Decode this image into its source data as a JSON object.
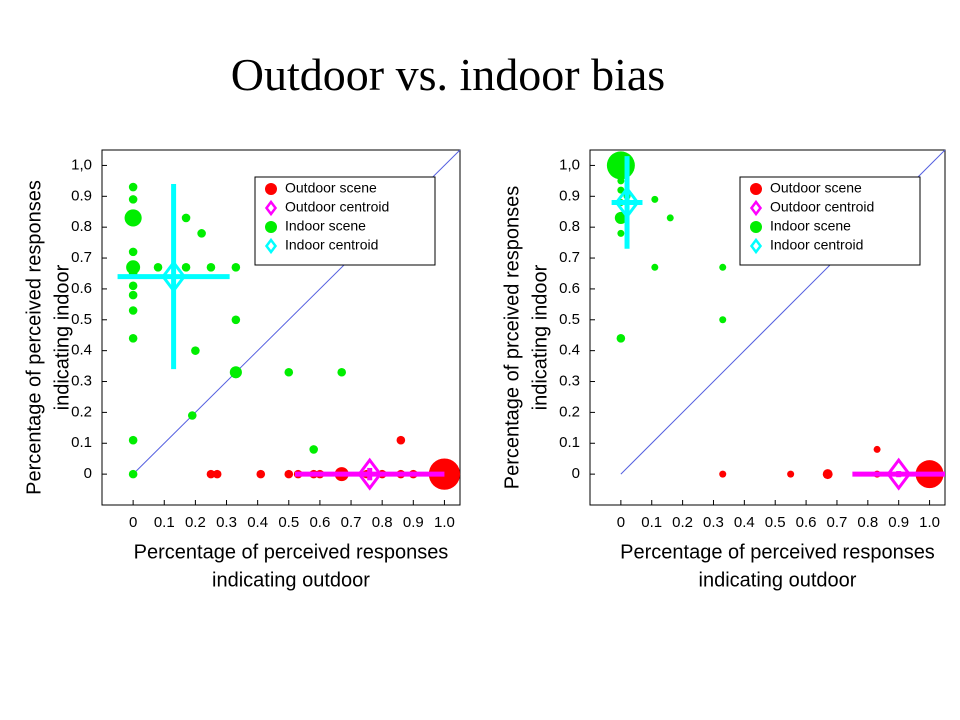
{
  "title": "Outdoor vs. indoor bias",
  "chart_data": [
    {
      "type": "scatter",
      "xlabel": [
        "Percentage of perceived responses",
        "indicating outdoor"
      ],
      "ylabel": [
        "Percentage of perceived responses",
        "indicating indoor"
      ],
      "xlim": [
        -0.1,
        1.05
      ],
      "ylim": [
        -0.1,
        1.05
      ],
      "xticks": [
        0,
        0.1,
        0.2,
        0.3,
        0.4,
        0.5,
        0.6,
        0.7,
        0.8,
        0.9,
        {
          "value": 1,
          "label": "1.0"
        }
      ],
      "yticks": [
        0,
        0.1,
        0.2,
        0.3,
        0.4,
        0.5,
        0.6,
        0.7,
        0.8,
        0.9,
        {
          "value": 1,
          "label": "1,0"
        }
      ],
      "legend": "upper right",
      "series": [
        {
          "name": "Outdoor scene",
          "color": "#ff0000",
          "marker": "circle",
          "x": [
            0.25,
            0.27,
            0.41,
            0.5,
            0.53,
            0.58,
            0.6,
            0.67,
            0.75,
            0.8,
            0.86,
            0.9,
            0.86,
            1.0
          ],
          "y": [
            0,
            0,
            0,
            0,
            0,
            0,
            0,
            0,
            0,
            0,
            0,
            0,
            0.11,
            0
          ],
          "sizes": [
            1.5,
            1.5,
            1.5,
            1.5,
            1.5,
            1.5,
            1.5,
            4,
            1.5,
            1.5,
            1.5,
            1.5,
            1.5,
            20
          ]
        },
        {
          "name": "Outdoor centroid",
          "color": "#ff00ff",
          "marker": "diamond",
          "x": [
            0.76
          ],
          "y": [
            0
          ],
          "x_err": [
            0.24
          ],
          "y_err": [
            0.02
          ]
        },
        {
          "name": "Indoor scene",
          "color": "#00ee00",
          "marker": "circle",
          "x": [
            0,
            0,
            0,
            0,
            0,
            0,
            0,
            0,
            0,
            0,
            0,
            0,
            0.08,
            0.17,
            0.22,
            0.17,
            0.25,
            0.33,
            0.2,
            0.33,
            0.33,
            0.19,
            0.5,
            0.67,
            0.58
          ],
          "y": [
            0.93,
            0.89,
            0.83,
            0.72,
            0.67,
            0.65,
            0.61,
            0.58,
            0.53,
            0.44,
            0.11,
            0,
            0.67,
            0.83,
            0.78,
            0.67,
            0.67,
            0.67,
            0.4,
            0.5,
            0.33,
            0.19,
            0.33,
            0.33,
            0.08
          ],
          "sizes": [
            1.5,
            1.5,
            6,
            1.5,
            4,
            1.5,
            1.5,
            1.5,
            1.5,
            1.5,
            1.5,
            1.5,
            1.5,
            1.5,
            1.5,
            1.5,
            1.5,
            1.5,
            1.5,
            1.5,
            3,
            1.5,
            1.5,
            1.5,
            1.5
          ]
        },
        {
          "name": "Indoor centroid",
          "color": "#00ffff",
          "marker": "diamond",
          "x": [
            0.13
          ],
          "y": [
            0.64
          ],
          "x_err": [
            0.18
          ],
          "y_err": [
            0.3
          ]
        }
      ]
    },
    {
      "type": "scatter",
      "xlabel": [
        "Percentage of perceived responses",
        "indicating outdoor"
      ],
      "ylabel": [
        "Percentage of prceived responses",
        "indicating indoor"
      ],
      "xlim": [
        -0.1,
        1.05
      ],
      "ylim": [
        -0.1,
        1.05
      ],
      "xticks": [
        0,
        0.1,
        0.2,
        0.3,
        0.4,
        0.5,
        0.6,
        0.7,
        0.8,
        0.9,
        {
          "value": 1,
          "label": "1.0"
        }
      ],
      "yticks": [
        0,
        0.1,
        0.2,
        0.3,
        0.4,
        0.5,
        0.6,
        0.7,
        0.8,
        0.9,
        {
          "value": 1,
          "label": "1,0"
        }
      ],
      "legend": "upper right",
      "series": [
        {
          "name": "Outdoor scene",
          "color": "#ff0000",
          "marker": "circle",
          "x": [
            0.33,
            0.55,
            0.67,
            0.83,
            0.83,
            1.0
          ],
          "y": [
            0,
            0,
            0,
            0.08,
            0,
            0
          ],
          "sizes": [
            1,
            1,
            2,
            1,
            1,
            16
          ]
        },
        {
          "name": "Outdoor centroid",
          "color": "#ff00ff",
          "marker": "diamond",
          "x": [
            0.9
          ],
          "y": [
            0
          ],
          "x_err": [
            0.15
          ],
          "y_err": [
            0.01
          ]
        },
        {
          "name": "Indoor scene",
          "color": "#00ee00",
          "marker": "circle",
          "x": [
            0,
            0,
            0,
            0,
            0,
            0,
            0.02,
            0.11,
            0.16,
            0.11,
            0.33,
            0.33,
            0
          ],
          "y": [
            1.0,
            0.95,
            0.92,
            0.88,
            0.83,
            0.78,
            0.9,
            0.89,
            0.83,
            0.67,
            0.67,
            0.5,
            0.44
          ],
          "sizes": [
            16,
            1,
            1,
            1,
            3,
            1,
            1,
            1,
            1,
            1,
            1,
            1,
            1.5
          ]
        },
        {
          "name": "Indoor centroid",
          "color": "#00ffff",
          "marker": "diamond",
          "x": [
            0.02
          ],
          "y": [
            0.88
          ],
          "x_err": [
            0.05
          ],
          "y_err": [
            0.15
          ]
        }
      ]
    }
  ]
}
